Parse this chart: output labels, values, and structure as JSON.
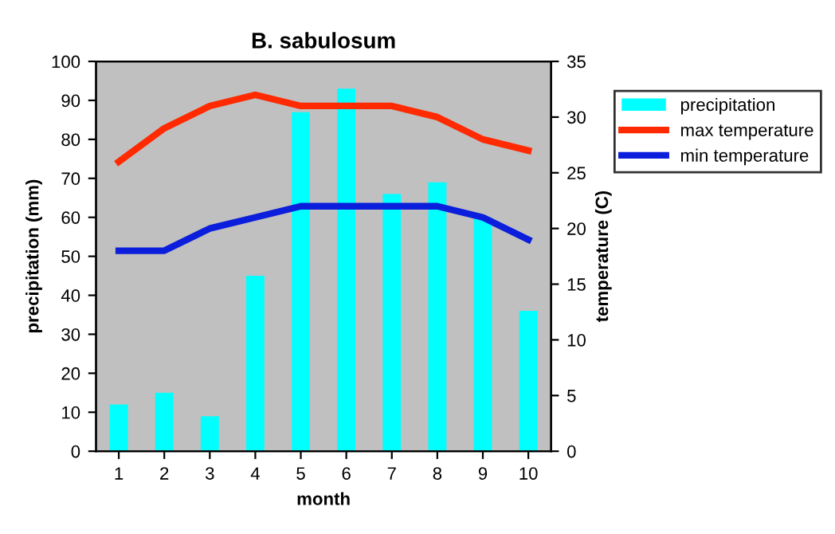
{
  "chart_data": {
    "type": "bar",
    "title": "B. sabulosum",
    "xlabel": "month",
    "ylabel": "precipitation (mm)",
    "y2label": "temperature (C)",
    "categories": [
      "1",
      "2",
      "3",
      "4",
      "5",
      "6",
      "7",
      "8",
      "9",
      "10"
    ],
    "series": [
      {
        "name": "precipitation",
        "color": "#00ffff",
        "values": [
          12,
          15,
          9,
          45,
          87,
          93,
          66,
          69,
          60,
          36
        ]
      },
      {
        "name": "max temperature",
        "type": "line",
        "axis": "y2",
        "color": "#ff2a00",
        "values": [
          26,
          29,
          31,
          32,
          31,
          31,
          31,
          30,
          28,
          27
        ]
      },
      {
        "name": "min temperature",
        "type": "line",
        "axis": "y2",
        "color": "#0a1edc",
        "values": [
          18,
          18,
          20,
          21,
          22,
          22,
          22,
          22,
          21,
          19
        ]
      }
    ],
    "ylim": [
      0,
      100
    ],
    "yticks": [
      0,
      10,
      20,
      30,
      40,
      50,
      60,
      70,
      80,
      90,
      100
    ],
    "y2lim": [
      0,
      35
    ],
    "y2ticks": [
      0,
      5,
      10,
      15,
      20,
      25,
      30,
      35
    ],
    "grid": false,
    "legend": "right",
    "marker": "none",
    "line_style": "solid"
  }
}
